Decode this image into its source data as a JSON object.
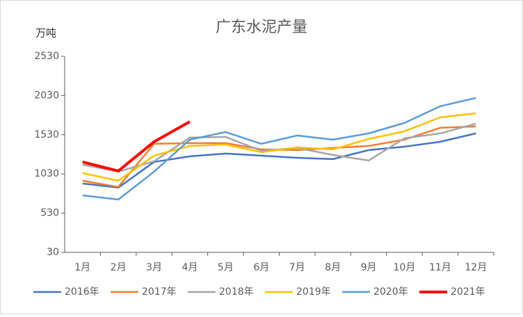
{
  "chart_data": {
    "type": "line",
    "title": "广东水泥产量",
    "y_label": "万吨",
    "categories": [
      "1月",
      "2月",
      "3月",
      "4月",
      "5月",
      "6月",
      "7月",
      "8月",
      "9月",
      "10月",
      "11月",
      "12月"
    ],
    "ylim": [
      30,
      2530
    ],
    "yticks": [
      30,
      530,
      1030,
      1530,
      2030,
      2530
    ],
    "legend": "bottom",
    "series": [
      {
        "name": "2016年",
        "color": "#4472c4",
        "values": [
          908,
          855,
          1183,
          1254,
          1290,
          1263,
          1236,
          1219,
          1334,
          1378,
          1440,
          1547
        ]
      },
      {
        "name": "2017年",
        "color": "#ed7d31",
        "values": [
          943,
          864,
          1414,
          1423,
          1423,
          1343,
          1334,
          1361,
          1387,
          1467,
          1618,
          1636
        ]
      },
      {
        "name": "2018年",
        "color": "#a5a5a5",
        "values": [
          1148,
          1059,
          1192,
          1494,
          1502,
          1325,
          1361,
          1272,
          1201,
          1485,
          1547,
          1671
        ]
      },
      {
        "name": "2019年",
        "color": "#ffc000",
        "values": [
          1041,
          943,
          1263,
          1387,
          1405,
          1307,
          1369,
          1343,
          1476,
          1573,
          1751,
          1804
        ]
      },
      {
        "name": "2020年",
        "color": "#5b9bd5",
        "values": [
          757,
          704,
          1059,
          1467,
          1564,
          1414,
          1520,
          1467,
          1547,
          1680,
          1893,
          2000
        ]
      },
      {
        "name": "2021年",
        "color": "#ff0000",
        "values": [
          1183,
          1068,
          1440,
          1697,
          null,
          null,
          null,
          null,
          null,
          null,
          null,
          null
        ]
      }
    ]
  }
}
